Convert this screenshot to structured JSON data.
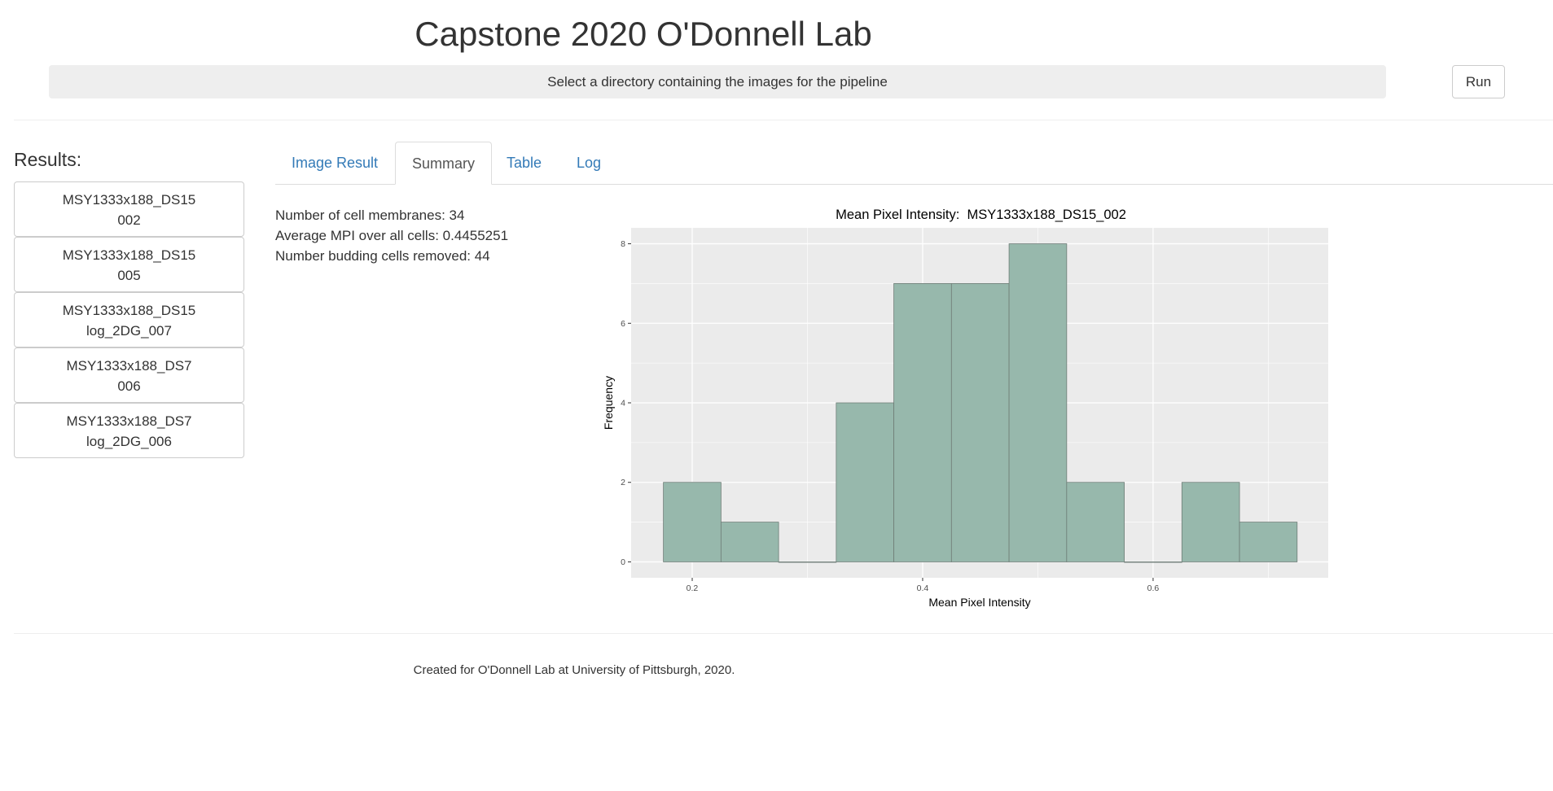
{
  "app": {
    "title": "Capstone 2020 O'Donnell Lab",
    "directory_prompt": "Select a directory containing the images for the pipeline",
    "run_label": "Run"
  },
  "sidebar": {
    "heading": "Results:",
    "items": [
      {
        "line1": "MSY1333x188_DS15",
        "line2": "002"
      },
      {
        "line1": "MSY1333x188_DS15",
        "line2": "005"
      },
      {
        "line1": "MSY1333x188_DS15",
        "line2": "log_2DG_007"
      },
      {
        "line1": "MSY1333x188_DS7",
        "line2": "006"
      },
      {
        "line1": "MSY1333x188_DS7",
        "line2": "log_2DG_006"
      }
    ]
  },
  "tabs": [
    {
      "label": "Image Result",
      "active": false
    },
    {
      "label": "Summary",
      "active": true
    },
    {
      "label": "Table",
      "active": false
    },
    {
      "label": "Log",
      "active": false
    }
  ],
  "summary": {
    "membranes": "Number of cell membranes: 34",
    "average_mpi": "Average MPI over all cells: 0.4455251",
    "budding_removed": "Number budding cells removed: 44"
  },
  "footer": {
    "text": "Created for O'Donnell Lab at University of Pittsburgh, 2020."
  },
  "chart_data": {
    "type": "bar",
    "title": "Mean Pixel Intensity:  MSY1333x188_DS15_002",
    "xlabel": "Mean Pixel Intensity",
    "ylabel": "Frequency",
    "bin_width": 0.05,
    "bin_starts": [
      0.175,
      0.225,
      0.275,
      0.325,
      0.375,
      0.425,
      0.475,
      0.525,
      0.575,
      0.625,
      0.675
    ],
    "values": [
      2,
      1,
      0,
      4,
      7,
      7,
      8,
      2,
      0,
      2,
      1
    ],
    "xlim": [
      0.147,
      0.752
    ],
    "ylim": [
      -0.4,
      8.4
    ],
    "x_ticks": [
      0.2,
      0.4,
      0.6
    ],
    "x_tick_labels": [
      "0.2",
      "0.4",
      "0.6"
    ],
    "y_ticks": [
      0,
      2,
      4,
      6,
      8
    ],
    "y_tick_labels": [
      "0",
      "2",
      "4",
      "6",
      "8"
    ],
    "grid": true,
    "colors": {
      "bar_fill": "#97b8ac",
      "bar_stroke": "#6f7d77",
      "panel": "#ebebeb",
      "grid": "#ffffff"
    }
  }
}
